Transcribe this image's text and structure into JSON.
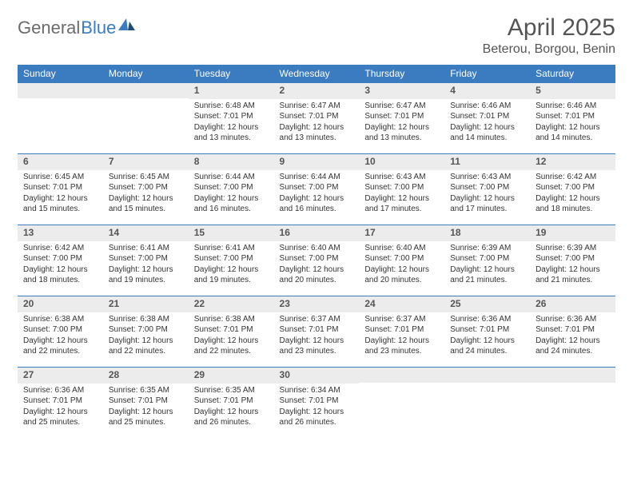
{
  "logo": {
    "part1": "General",
    "part2": "Blue"
  },
  "title": "April 2025",
  "location": "Beterou, Borgou, Benin",
  "day_headers": [
    "Sunday",
    "Monday",
    "Tuesday",
    "Wednesday",
    "Thursday",
    "Friday",
    "Saturday"
  ],
  "colors": {
    "header_bg": "#3b7bbf",
    "header_text": "#ffffff",
    "daynum_bg": "#ececec",
    "cell_border": "#3b7bbf",
    "logo_gray": "#6b6b6b",
    "logo_blue": "#3b7bbf"
  },
  "weeks": [
    [
      {
        "n": "",
        "sr": "",
        "ss": "",
        "dl": ""
      },
      {
        "n": "",
        "sr": "",
        "ss": "",
        "dl": ""
      },
      {
        "n": "1",
        "sr": "Sunrise: 6:48 AM",
        "ss": "Sunset: 7:01 PM",
        "dl": "Daylight: 12 hours and 13 minutes."
      },
      {
        "n": "2",
        "sr": "Sunrise: 6:47 AM",
        "ss": "Sunset: 7:01 PM",
        "dl": "Daylight: 12 hours and 13 minutes."
      },
      {
        "n": "3",
        "sr": "Sunrise: 6:47 AM",
        "ss": "Sunset: 7:01 PM",
        "dl": "Daylight: 12 hours and 13 minutes."
      },
      {
        "n": "4",
        "sr": "Sunrise: 6:46 AM",
        "ss": "Sunset: 7:01 PM",
        "dl": "Daylight: 12 hours and 14 minutes."
      },
      {
        "n": "5",
        "sr": "Sunrise: 6:46 AM",
        "ss": "Sunset: 7:01 PM",
        "dl": "Daylight: 12 hours and 14 minutes."
      }
    ],
    [
      {
        "n": "6",
        "sr": "Sunrise: 6:45 AM",
        "ss": "Sunset: 7:01 PM",
        "dl": "Daylight: 12 hours and 15 minutes."
      },
      {
        "n": "7",
        "sr": "Sunrise: 6:45 AM",
        "ss": "Sunset: 7:00 PM",
        "dl": "Daylight: 12 hours and 15 minutes."
      },
      {
        "n": "8",
        "sr": "Sunrise: 6:44 AM",
        "ss": "Sunset: 7:00 PM",
        "dl": "Daylight: 12 hours and 16 minutes."
      },
      {
        "n": "9",
        "sr": "Sunrise: 6:44 AM",
        "ss": "Sunset: 7:00 PM",
        "dl": "Daylight: 12 hours and 16 minutes."
      },
      {
        "n": "10",
        "sr": "Sunrise: 6:43 AM",
        "ss": "Sunset: 7:00 PM",
        "dl": "Daylight: 12 hours and 17 minutes."
      },
      {
        "n": "11",
        "sr": "Sunrise: 6:43 AM",
        "ss": "Sunset: 7:00 PM",
        "dl": "Daylight: 12 hours and 17 minutes."
      },
      {
        "n": "12",
        "sr": "Sunrise: 6:42 AM",
        "ss": "Sunset: 7:00 PM",
        "dl": "Daylight: 12 hours and 18 minutes."
      }
    ],
    [
      {
        "n": "13",
        "sr": "Sunrise: 6:42 AM",
        "ss": "Sunset: 7:00 PM",
        "dl": "Daylight: 12 hours and 18 minutes."
      },
      {
        "n": "14",
        "sr": "Sunrise: 6:41 AM",
        "ss": "Sunset: 7:00 PM",
        "dl": "Daylight: 12 hours and 19 minutes."
      },
      {
        "n": "15",
        "sr": "Sunrise: 6:41 AM",
        "ss": "Sunset: 7:00 PM",
        "dl": "Daylight: 12 hours and 19 minutes."
      },
      {
        "n": "16",
        "sr": "Sunrise: 6:40 AM",
        "ss": "Sunset: 7:00 PM",
        "dl": "Daylight: 12 hours and 20 minutes."
      },
      {
        "n": "17",
        "sr": "Sunrise: 6:40 AM",
        "ss": "Sunset: 7:00 PM",
        "dl": "Daylight: 12 hours and 20 minutes."
      },
      {
        "n": "18",
        "sr": "Sunrise: 6:39 AM",
        "ss": "Sunset: 7:00 PM",
        "dl": "Daylight: 12 hours and 21 minutes."
      },
      {
        "n": "19",
        "sr": "Sunrise: 6:39 AM",
        "ss": "Sunset: 7:00 PM",
        "dl": "Daylight: 12 hours and 21 minutes."
      }
    ],
    [
      {
        "n": "20",
        "sr": "Sunrise: 6:38 AM",
        "ss": "Sunset: 7:00 PM",
        "dl": "Daylight: 12 hours and 22 minutes."
      },
      {
        "n": "21",
        "sr": "Sunrise: 6:38 AM",
        "ss": "Sunset: 7:00 PM",
        "dl": "Daylight: 12 hours and 22 minutes."
      },
      {
        "n": "22",
        "sr": "Sunrise: 6:38 AM",
        "ss": "Sunset: 7:01 PM",
        "dl": "Daylight: 12 hours and 22 minutes."
      },
      {
        "n": "23",
        "sr": "Sunrise: 6:37 AM",
        "ss": "Sunset: 7:01 PM",
        "dl": "Daylight: 12 hours and 23 minutes."
      },
      {
        "n": "24",
        "sr": "Sunrise: 6:37 AM",
        "ss": "Sunset: 7:01 PM",
        "dl": "Daylight: 12 hours and 23 minutes."
      },
      {
        "n": "25",
        "sr": "Sunrise: 6:36 AM",
        "ss": "Sunset: 7:01 PM",
        "dl": "Daylight: 12 hours and 24 minutes."
      },
      {
        "n": "26",
        "sr": "Sunrise: 6:36 AM",
        "ss": "Sunset: 7:01 PM",
        "dl": "Daylight: 12 hours and 24 minutes."
      }
    ],
    [
      {
        "n": "27",
        "sr": "Sunrise: 6:36 AM",
        "ss": "Sunset: 7:01 PM",
        "dl": "Daylight: 12 hours and 25 minutes."
      },
      {
        "n": "28",
        "sr": "Sunrise: 6:35 AM",
        "ss": "Sunset: 7:01 PM",
        "dl": "Daylight: 12 hours and 25 minutes."
      },
      {
        "n": "29",
        "sr": "Sunrise: 6:35 AM",
        "ss": "Sunset: 7:01 PM",
        "dl": "Daylight: 12 hours and 26 minutes."
      },
      {
        "n": "30",
        "sr": "Sunrise: 6:34 AM",
        "ss": "Sunset: 7:01 PM",
        "dl": "Daylight: 12 hours and 26 minutes."
      },
      {
        "n": "",
        "sr": "",
        "ss": "",
        "dl": ""
      },
      {
        "n": "",
        "sr": "",
        "ss": "",
        "dl": ""
      },
      {
        "n": "",
        "sr": "",
        "ss": "",
        "dl": ""
      }
    ]
  ]
}
